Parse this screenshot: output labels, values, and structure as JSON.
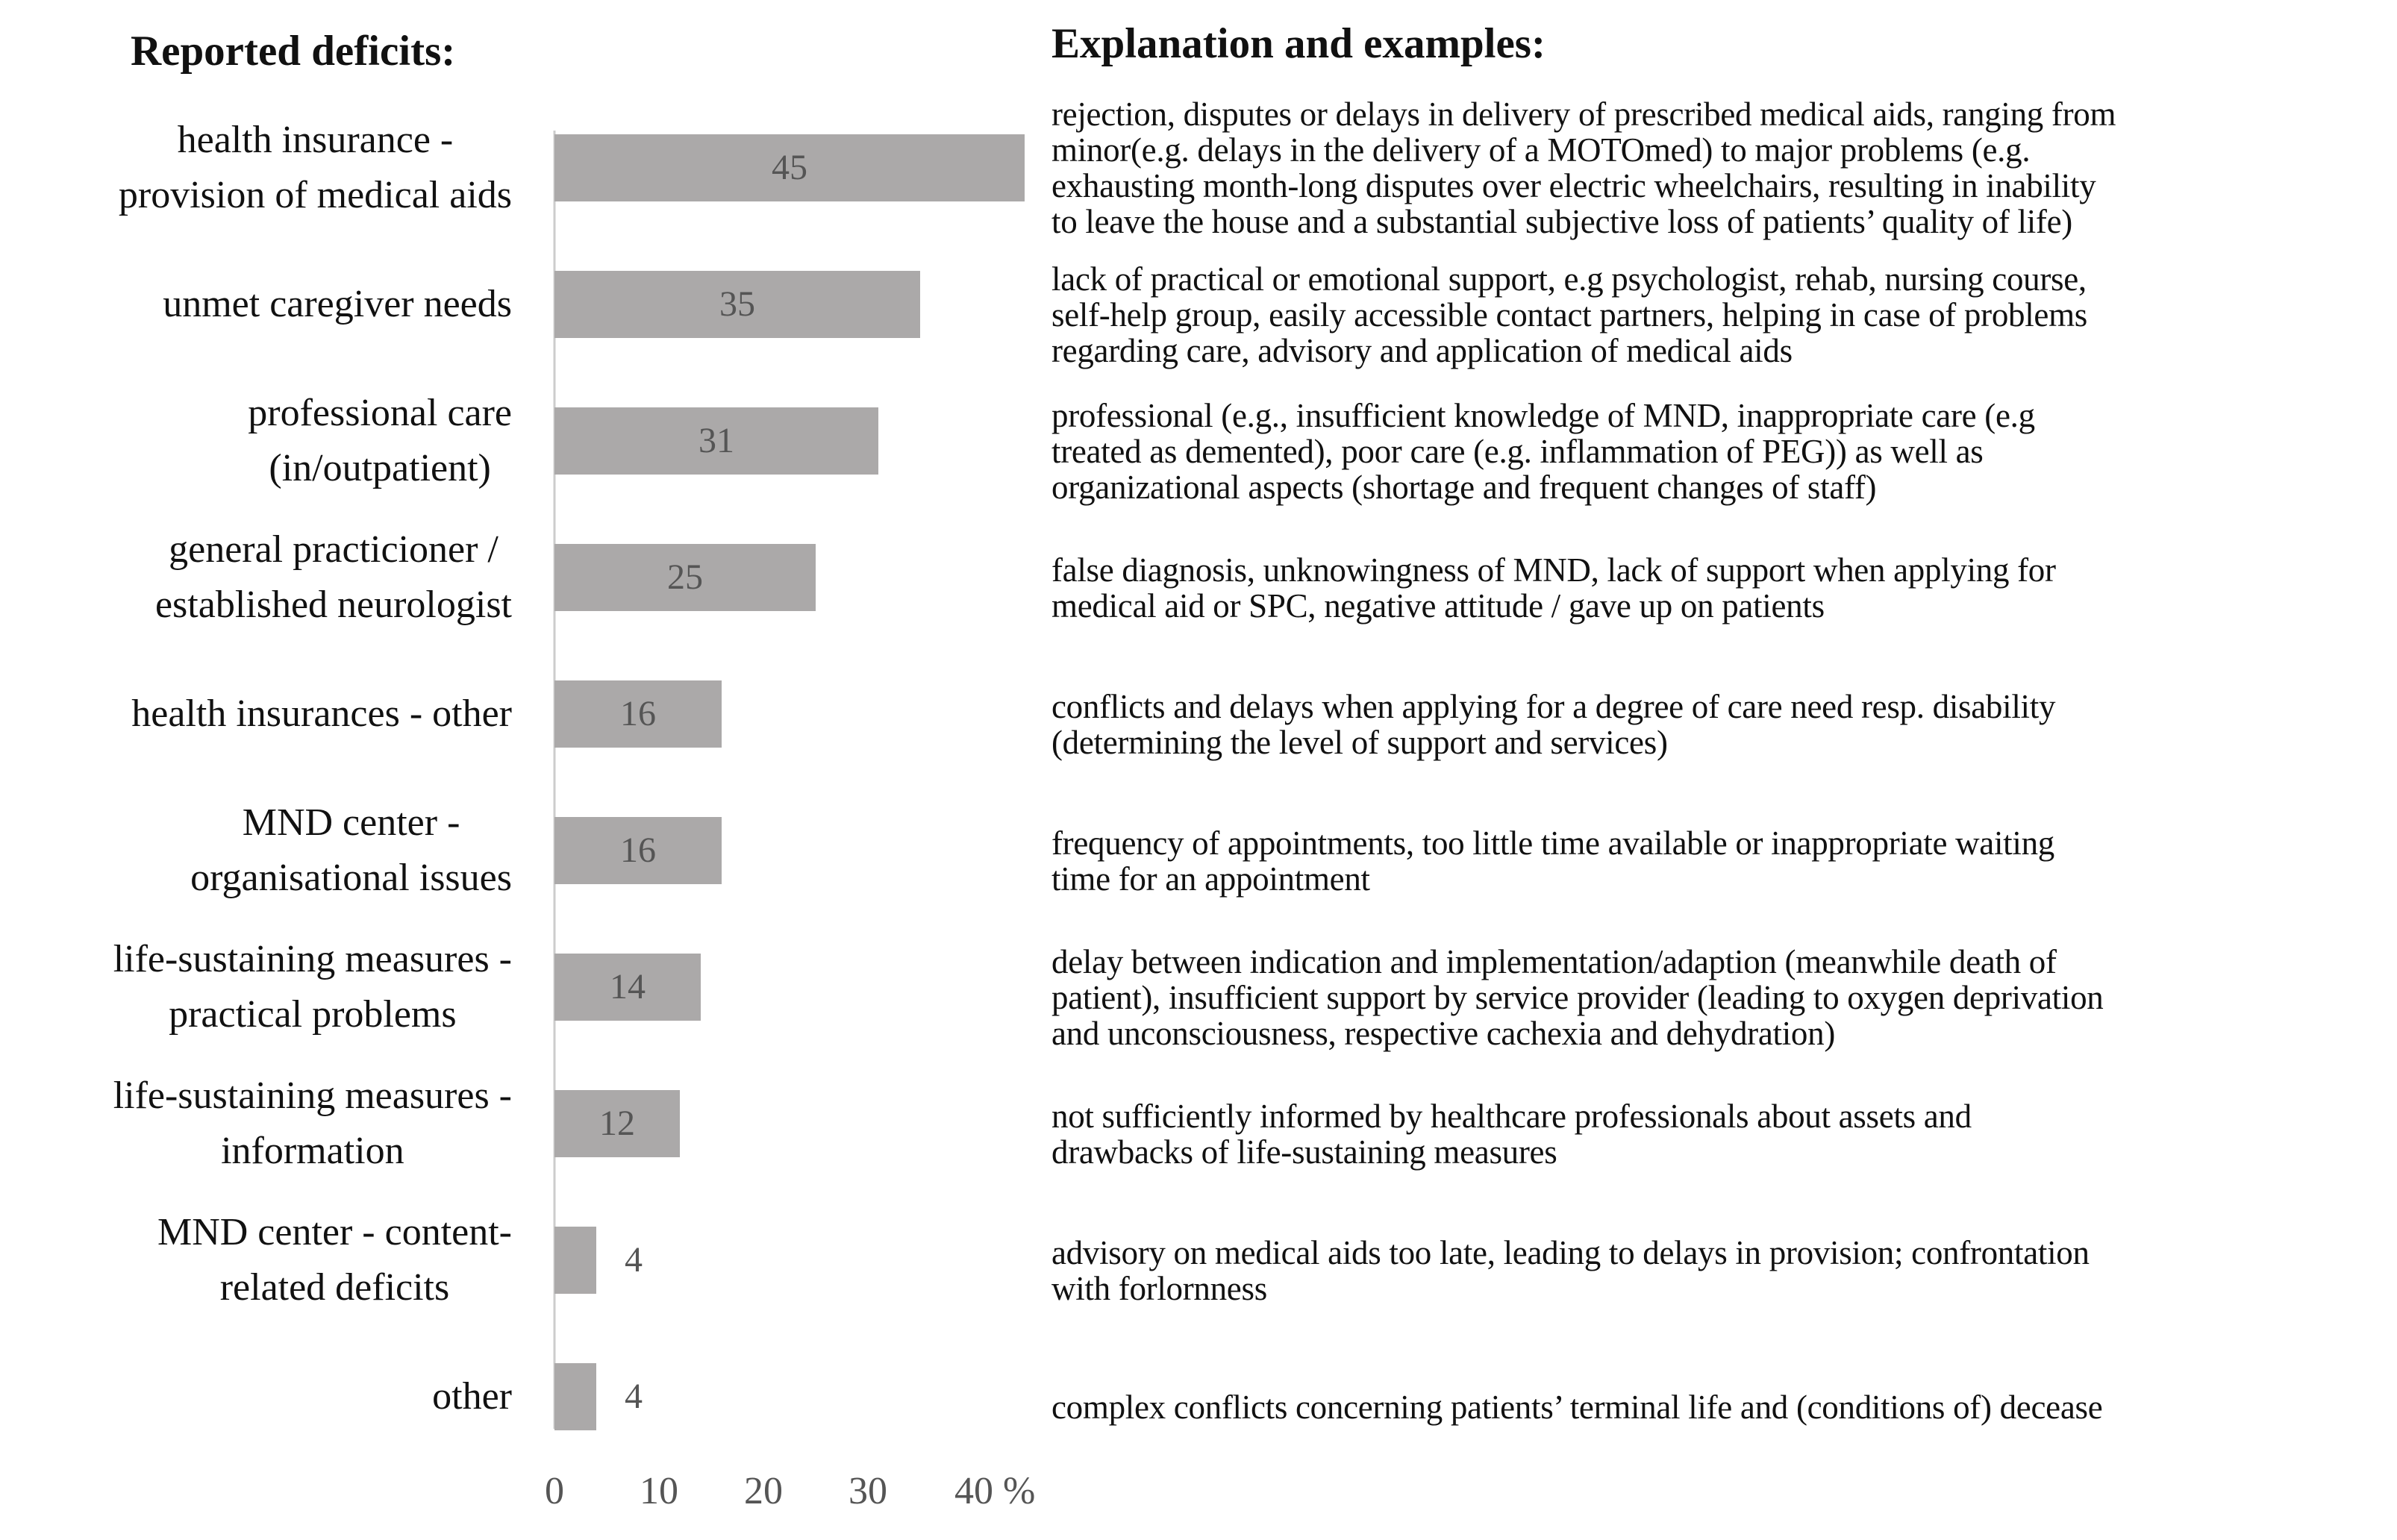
{
  "chart_data": {
    "type": "bar",
    "orientation": "horizontal",
    "title": "Reported deficits:",
    "categories": [
      "health insurance -\nprovision of medical aids",
      "unmet caregiver needs",
      "professional care\n(in/outpatient)",
      "general practicioner /\nestablished neurologist",
      "health insurances  - other",
      "MND center -\norganisational issues",
      "life-sustaining measures -\npractical problems",
      "life-sustaining measures -\ninformation",
      "MND center - content-\nrelated deficits",
      "other"
    ],
    "values": [
      45,
      35,
      31,
      25,
      16,
      16,
      14,
      12,
      4,
      4
    ],
    "color": "#aba9a9",
    "xlim": [
      0,
      45
    ],
    "xticks": [
      0,
      10,
      20,
      30,
      {
        "value": 40,
        "label": "40 %"
      }
    ],
    "explanations_title": "Explanation and examples:",
    "explanations": [
      "rejection, disputes or delays in delivery of prescribed medical aids, ranging from\nminor(e.g. delays in the delivery of a MOTOmed) to major problems (e.g.\nexhausting month-long disputes over electric wheelchairs, resulting in inability\nto leave the house and a substantial subjective loss of patients’ quality of life)",
      "lack of practical or emotional support, e.g psychologist, rehab, nursing course,\nself-help group, easily accessible contact partners, helping in case of problems\nregarding care, advisory and application of medical aids",
      "professional (e.g., insufficient knowledge of MND, inappropriate care (e.g\ntreated as demented), poor care (e.g. inflammation of PEG)) as well as\norganizational aspects (shortage and frequent changes of staff)",
      "false diagnosis, unknowingness of MND, lack of support when applying for\nmedical aid or SPC, negative attitude / gave up on patients",
      "conflicts and delays when applying for a degree of care need resp. disability\n(determining the level of support and services)",
      "frequency of appointments, too little time available or inappropriate waiting\ntime for an appointment",
      "delay between indication and implementation/adaption (meanwhile death of\npatient), insufficient support by service provider (leading to oxygen deprivation\nand unconsciousness, respective cachexia and dehydration)",
      "not sufficiently informed by healthcare professionals about assets and\ndrawbacks of life-sustaining measures",
      "advisory on medical aids too late, leading to delays in provision; confrontation\nwith forlornness",
      "complex conflicts concerning patients’ terminal life and (conditions of) decease"
    ]
  }
}
